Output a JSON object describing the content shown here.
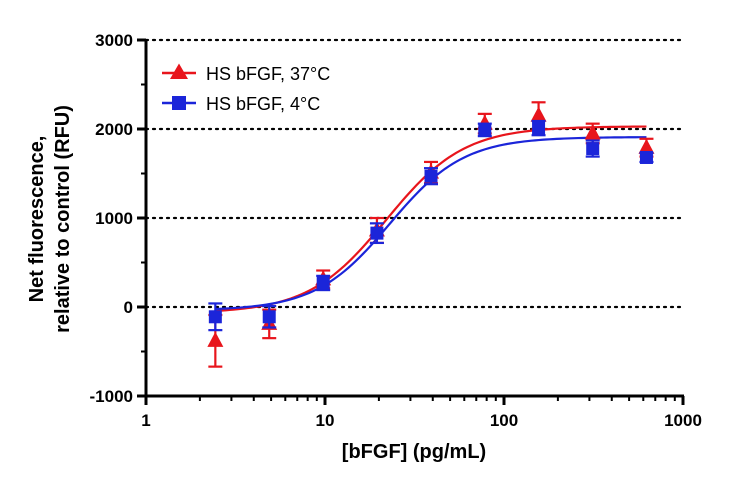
{
  "chart_data": {
    "type": "scatter",
    "title": "",
    "xlabel": "[bFGF] (pg/mL)",
    "ylabel_lines": [
      "Net fluorescence,",
      "relative to control (RFU)"
    ],
    "x_scale": "log",
    "xlim": [
      1,
      1000
    ],
    "ylim": [
      -1000,
      3000
    ],
    "x_ticks": [
      1,
      10,
      100,
      1000
    ],
    "x_tick_labels": [
      "1",
      "10",
      "100",
      "1000"
    ],
    "y_ticks": [
      -1000,
      0,
      1000,
      2000,
      3000
    ],
    "y_tick_labels": [
      "-1000",
      "0",
      "1000",
      "2000",
      "3000"
    ],
    "dotted_gridlines_at": [
      0,
      1000,
      2000,
      3000
    ],
    "legend_position": "top-left",
    "series": [
      {
        "name": "HS bFGF, 37°C",
        "color": "#e8151c",
        "marker": "triangle",
        "x": [
          2.44,
          4.88,
          9.77,
          19.5,
          39.1,
          78.1,
          156,
          313,
          625
        ],
        "y": [
          -380,
          -190,
          310,
          860,
          1510,
          2060,
          2150,
          1950,
          1790
        ],
        "error": [
          290,
          160,
          100,
          140,
          120,
          110,
          150,
          110,
          100
        ],
        "fit": {
          "bottom": -70,
          "top": 2030,
          "ec50": 22,
          "hill": 2.0
        }
      },
      {
        "name": "HS bFGF, 4°C",
        "color": "#1b25d9",
        "marker": "square",
        "x": [
          2.44,
          4.88,
          9.77,
          19.5,
          39.1,
          78.1,
          156,
          313,
          625
        ],
        "y": [
          -110,
          -110,
          270,
          830,
          1470,
          1990,
          2010,
          1780,
          1680
        ],
        "error": [
          150,
          120,
          80,
          110,
          90,
          70,
          80,
          90,
          50
        ],
        "fit": {
          "bottom": -40,
          "top": 1910,
          "ec50": 23,
          "hill": 2.1
        }
      }
    ]
  }
}
